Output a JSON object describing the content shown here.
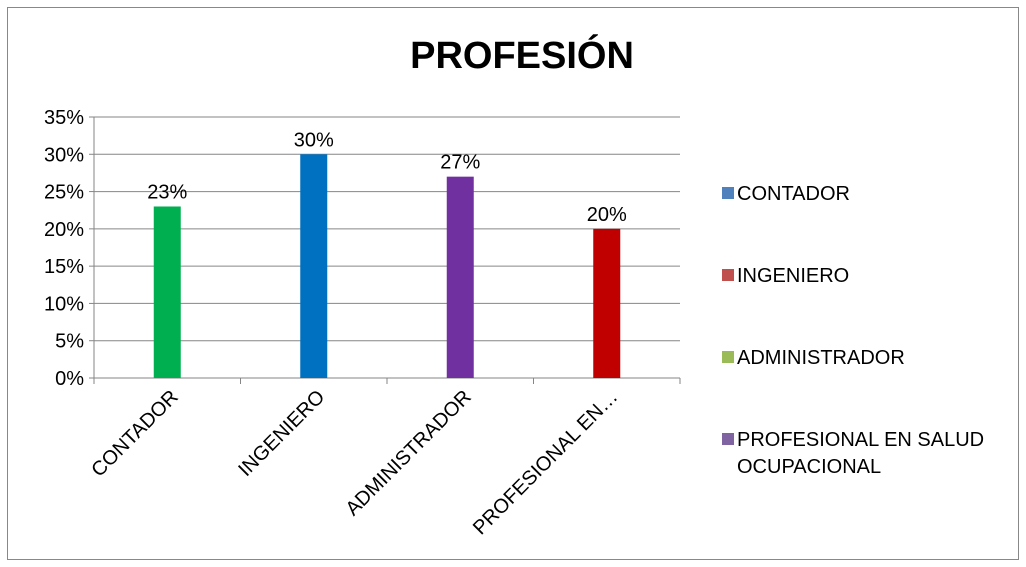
{
  "chart_data": {
    "type": "bar",
    "title": "PROFESIÓN",
    "categories": [
      "CONTADOR",
      "INGENIERO",
      "ADMINISTRADOR",
      "PROFESIONAL EN…"
    ],
    "values": [
      0.23,
      0.3,
      0.27,
      0.2
    ],
    "data_labels": [
      "23%",
      "30%",
      "27%",
      "20%"
    ],
    "bar_colors": [
      "#00B050",
      "#0070C0",
      "#7030A0",
      "#C00000"
    ],
    "ylim": [
      0,
      0.35
    ],
    "yticks": [
      0,
      0.05,
      0.1,
      0.15,
      0.2,
      0.25,
      0.3,
      0.35
    ],
    "ytick_labels": [
      "0%",
      "5%",
      "10%",
      "15%",
      "20%",
      "25%",
      "30%",
      "35%"
    ],
    "grid": true,
    "xlabel": "",
    "ylabel": "",
    "legend": {
      "placement": "right",
      "entries": [
        {
          "label": "CONTADOR",
          "color": "#4F81BD"
        },
        {
          "label": "INGENIERO",
          "color": "#C0504D"
        },
        {
          "label": "ADMINISTRADOR",
          "color": "#9BBB59"
        },
        {
          "label": "PROFESIONAL EN SALUD OCUPACIONAL",
          "color": "#8064A2",
          "lines": [
            "PROFESIONAL EN SALUD",
            "OCUPACIONAL"
          ]
        }
      ]
    }
  }
}
